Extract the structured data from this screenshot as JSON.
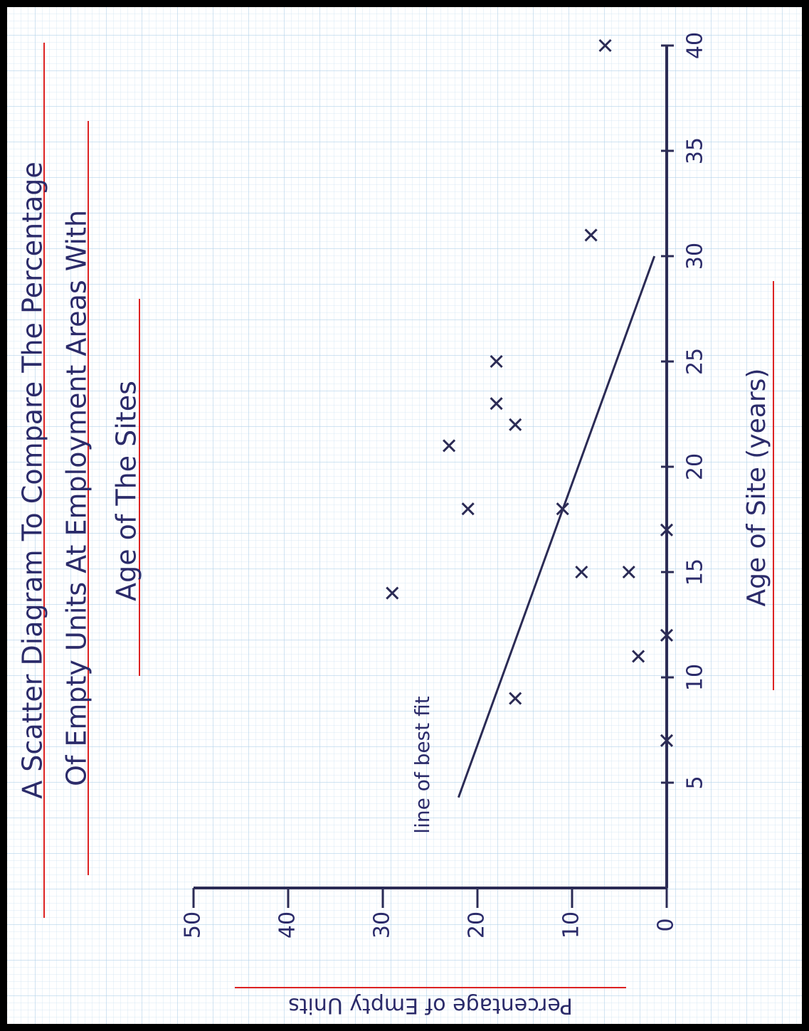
{
  "chart_data": {
    "type": "scatter",
    "title": [
      "A Scatter Diagram To Compare The Percentage",
      "Of Empty Units At Employment Areas With",
      "Age of The Sites"
    ],
    "x_label": "Age of Site (years)",
    "y_label": "Percentage of Empty Units",
    "annotation": "line of best fit",
    "color": "#2b2b55",
    "x": [
      40,
      31,
      25,
      23,
      22,
      21,
      18,
      18,
      17,
      15,
      15,
      14,
      12,
      11,
      9,
      7
    ],
    "values": [
      6.5,
      8,
      18,
      18,
      16,
      23,
      21,
      11,
      0,
      9,
      4,
      29,
      0,
      3,
      16,
      0
    ],
    "best_fit": {
      "x": [
        4.3,
        30
      ],
      "y": [
        22,
        1.3
      ]
    },
    "xlim": [
      0,
      40
    ],
    "xticks": [
      5,
      10,
      15,
      20,
      25,
      30,
      35,
      40
    ],
    "ylim": [
      0,
      50
    ],
    "yticks": [
      0,
      10,
      20,
      30,
      40,
      50
    ]
  }
}
